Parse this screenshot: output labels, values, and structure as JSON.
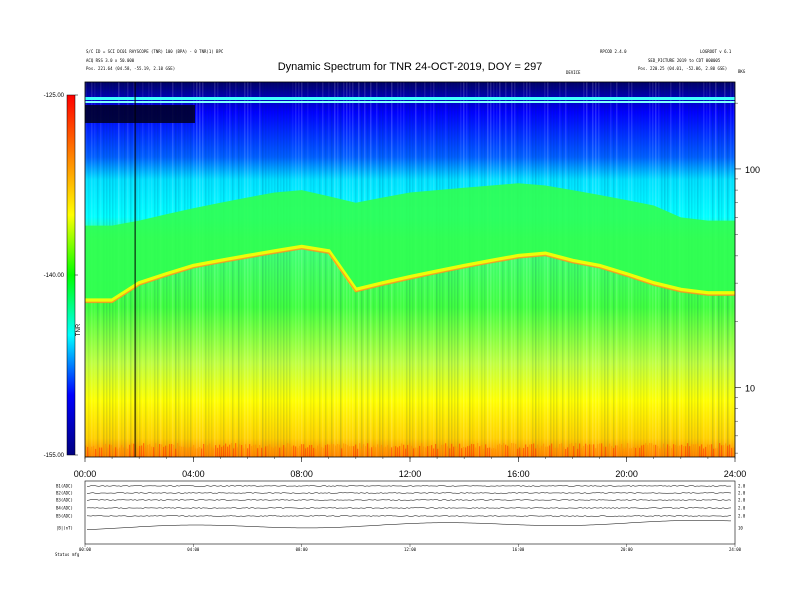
{
  "header": {
    "title": "Dynamic Spectrum for TNR 24-OCT-2019, DOY = 297",
    "left_lines": [
      "S/C ID = SCI DC01 RAYSCOPE (TNR) 100 (BPA) - 0 TNR(1) BPC",
      "ACQ RSS 3.0 x 50.000",
      "Pos.    221.64 (04.58, -55.19, 2.10 GSE)"
    ],
    "right_top": "LOGROOT v 6.1",
    "right_mid_a": "RPCOD 2.4.0",
    "right_mid_b": "SED_PICTURE 2019 to CDT 000005",
    "right_pos": "Pos.    220.25 (04.01, -52.06, 2.80 GSE)",
    "right_small": "DEVICE",
    "corner": "BKG"
  },
  "colorbar": {
    "min": -155.0,
    "max": -125.0,
    "ticks": [
      "-125.00",
      "-140.00",
      "-155.00"
    ],
    "label": "TNR",
    "stops": [
      "#000080",
      "#0000ff",
      "#00ffff",
      "#00ff00",
      "#ffff00",
      "#ff8000",
      "#ff0000"
    ]
  },
  "chart_data": {
    "type": "heatmap",
    "title": "Dynamic Spectrum for TNR 24-OCT-2019, DOY = 297",
    "x_ticks": [
      "00:00",
      "04:00",
      "08:00",
      "12:00",
      "16:00",
      "20:00",
      "24:00"
    ],
    "x_range_hours": [
      0,
      24
    ],
    "y_scale": "log",
    "y_ticks": [
      {
        "value": 100,
        "label": "100"
      },
      {
        "value": 10,
        "label": "10"
      }
    ],
    "y_range": [
      4.8,
      250
    ],
    "marker_time_hours": 1.85,
    "band_shape": {
      "times_hours": [
        0,
        1,
        2,
        3,
        4,
        5,
        6,
        7,
        8,
        9,
        10,
        11,
        12,
        13,
        14,
        15,
        16,
        17,
        18,
        19,
        20,
        21,
        22,
        23,
        24
      ],
      "lower_edge_freq": [
        25,
        25,
        30,
        33,
        36,
        38,
        40,
        42,
        44,
        42,
        28,
        30,
        32,
        34,
        36,
        38,
        40,
        41,
        38,
        36,
        33,
        30,
        28,
        27,
        27
      ],
      "upper_edge_freq": [
        55,
        55,
        58,
        62,
        66,
        70,
        74,
        78,
        80,
        75,
        70,
        74,
        78,
        80,
        82,
        84,
        86,
        84,
        80,
        76,
        72,
        68,
        60,
        58,
        58
      ]
    }
  },
  "summary": {
    "rows": [
      {
        "label": "B1(ADC)",
        "right": "2.0"
      },
      {
        "label": "B2(ADC)",
        "right": "2.0"
      },
      {
        "label": "B3(ADC)",
        "right": "2.0"
      },
      {
        "label": "B4(ADC)",
        "right": "2.0"
      },
      {
        "label": "B5(ADC)",
        "right": "2.0"
      },
      {
        "label": "|B|(nT)",
        "right": "10"
      }
    ],
    "x_ticks": [
      "00:00",
      "04:00",
      "08:00",
      "12:00",
      "16:00",
      "20:00",
      "24:00"
    ],
    "footer_left": "Status",
    "footer_right": "mfg"
  }
}
